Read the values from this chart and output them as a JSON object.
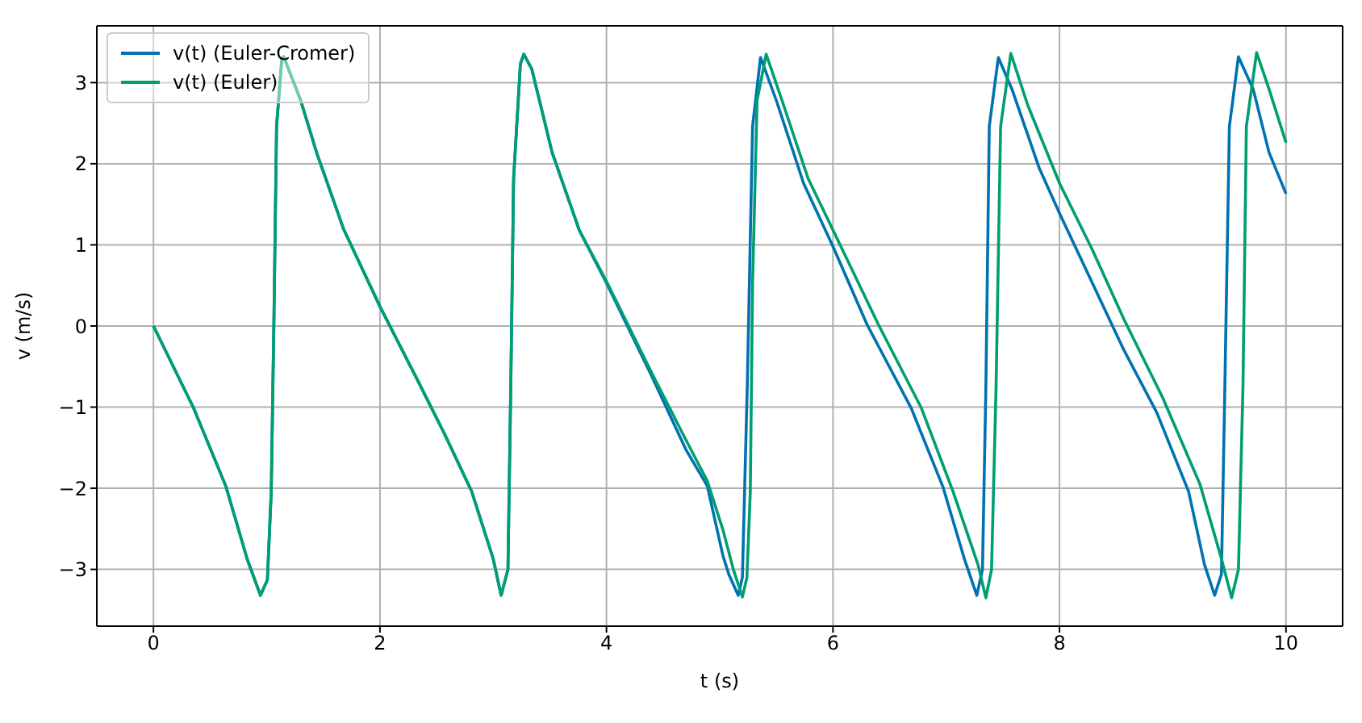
{
  "chart_data": {
    "type": "line",
    "xlabel": "t (s)",
    "ylabel": "v (m/s)",
    "xlim": [
      -0.5,
      10.5
    ],
    "ylim": [
      -3.7,
      3.7
    ],
    "xticks": [
      0,
      2,
      4,
      6,
      8,
      10
    ],
    "yticks": [
      {
        "value": -3,
        "label": "−3"
      },
      {
        "value": -2,
        "label": "−2"
      },
      {
        "value": -1,
        "label": "−1"
      },
      0,
      1,
      2,
      3
    ],
    "grid": true,
    "legend": "top left",
    "marker": "none",
    "line_style": "solid",
    "series": [
      {
        "name": "v(t) (Euler-Cromer)",
        "color": "#0072b2",
        "x": [
          0,
          0.354,
          0.638,
          0.827,
          0.945,
          1.006,
          1.04,
          1.063,
          1.087,
          1.134,
          1.15,
          1.3,
          1.44,
          1.68,
          2.0,
          2.34,
          2.57,
          2.81,
          3.0,
          3.07,
          3.13,
          3.155,
          3.18,
          3.24,
          3.27,
          3.34,
          3.52,
          3.76,
          4.0,
          4.4,
          4.7,
          4.89,
          5.03,
          5.08,
          5.163,
          5.2,
          5.243,
          5.29,
          5.36,
          5.5,
          5.74,
          6.0,
          6.3,
          6.69,
          6.97,
          7.16,
          7.27,
          7.32,
          7.35,
          7.38,
          7.46,
          7.58,
          7.82,
          8.0,
          8.29,
          8.57,
          8.86,
          9.14,
          9.28,
          9.37,
          9.43,
          9.46,
          9.5,
          9.58,
          9.71,
          9.85,
          10
        ],
        "values": [
          0,
          -1.01,
          -1.97,
          -2.87,
          -3.32,
          -3.13,
          -2.04,
          0,
          2.46,
          3.3,
          3.32,
          2.78,
          2.14,
          1.19,
          0.24,
          -0.69,
          -1.33,
          -2.04,
          -2.87,
          -3.32,
          -3.0,
          -0.75,
          1.82,
          3.23,
          3.35,
          3.17,
          2.14,
          1.18,
          0.53,
          -0.62,
          -1.52,
          -1.97,
          -2.84,
          -3.06,
          -3.32,
          -3.1,
          -0.75,
          2.46,
          3.31,
          2.78,
          1.76,
          0.98,
          0.02,
          -1.01,
          -1.98,
          -2.87,
          -3.32,
          -3.0,
          -0.75,
          2.46,
          3.31,
          2.92,
          1.95,
          1.39,
          0.53,
          -0.3,
          -1.07,
          -2.04,
          -2.94,
          -3.32,
          -3.06,
          -0.75,
          2.46,
          3.32,
          2.92,
          2.14,
          1.63
        ]
      },
      {
        "name": "v(t) (Euler)",
        "color": "#009e73",
        "x": [
          0,
          0.354,
          0.638,
          0.827,
          0.945,
          1.006,
          1.04,
          1.063,
          1.087,
          1.134,
          1.15,
          1.3,
          1.44,
          1.68,
          2.0,
          2.34,
          2.57,
          2.81,
          3.0,
          3.07,
          3.13,
          3.155,
          3.18,
          3.24,
          3.27,
          3.34,
          3.52,
          3.76,
          4.0,
          4.4,
          4.7,
          4.89,
          5.03,
          5.12,
          5.2,
          5.24,
          5.27,
          5.29,
          5.33,
          5.41,
          5.55,
          5.78,
          6.07,
          6.4,
          6.78,
          7.06,
          7.28,
          7.35,
          7.4,
          7.44,
          7.48,
          7.57,
          7.72,
          8.0,
          8.29,
          8.57,
          8.91,
          9.24,
          9.43,
          9.52,
          9.58,
          9.62,
          9.65,
          9.74,
          9.85,
          10
        ],
        "values": [
          0,
          -1.01,
          -1.97,
          -2.87,
          -3.32,
          -3.13,
          -2.04,
          0,
          2.46,
          3.3,
          3.32,
          2.78,
          2.14,
          1.19,
          0.24,
          -0.69,
          -1.33,
          -2.04,
          -2.87,
          -3.32,
          -3.0,
          -0.75,
          1.82,
          3.23,
          3.35,
          3.17,
          2.14,
          1.18,
          0.55,
          -0.58,
          -1.4,
          -1.91,
          -2.52,
          -3.0,
          -3.34,
          -3.1,
          -2.04,
          0.53,
          2.78,
          3.35,
          2.78,
          1.82,
          0.98,
          0.02,
          -1.01,
          -2.04,
          -2.94,
          -3.35,
          -3.0,
          -0.75,
          2.46,
          3.36,
          2.72,
          1.76,
          0.94,
          0.08,
          -0.88,
          -1.95,
          -2.87,
          -3.35,
          -3.0,
          -0.75,
          2.46,
          3.37,
          2.92,
          2.26
        ]
      }
    ]
  }
}
